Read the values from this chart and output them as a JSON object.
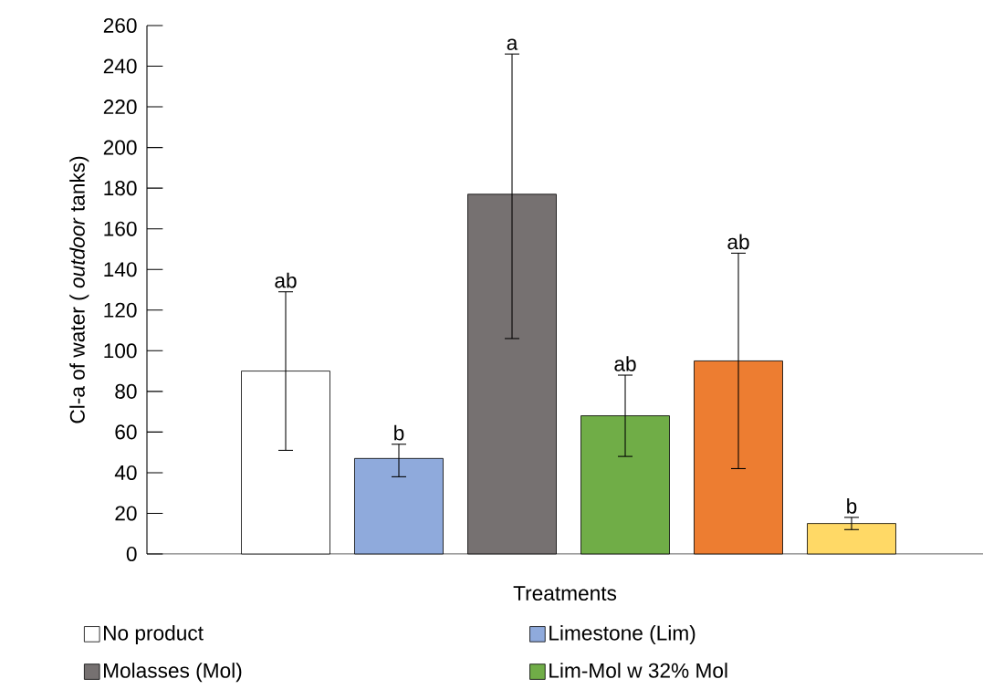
{
  "chart_data": {
    "type": "bar",
    "xlabel": "Treatments",
    "ylabel": "Cl-a of water ( *outdoor* tanks)",
    "categories": [
      null,
      null,
      null,
      null,
      null,
      null
    ],
    "series": [
      {
        "name": "No product",
        "color": "#ffffff",
        "values": [
          90,
          null,
          null,
          null,
          null,
          null
        ],
        "errors": [
          [
            51,
            129
          ],
          null,
          null,
          null,
          null,
          null
        ]
      },
      {
        "name": "Limestone (Lim)",
        "color": "#8faadc",
        "values": [
          null,
          47,
          null,
          null,
          null,
          null
        ],
        "errors": [
          null,
          [
            38,
            54
          ],
          null,
          null,
          null,
          null
        ]
      },
      {
        "name": "Molasses (Mol)",
        "color": "#767171",
        "values": [
          null,
          null,
          177,
          null,
          null,
          null
        ],
        "errors": [
          null,
          null,
          [
            106,
            246
          ],
          null,
          null,
          null
        ]
      },
      {
        "name": "Lim-Mol w 32% Mol",
        "color": "#70ad47",
        "values": [
          null,
          null,
          null,
          68,
          null,
          null
        ],
        "errors": [
          null,
          null,
          null,
          [
            48,
            88
          ],
          null,
          null
        ]
      },
      {
        "color": "#ed7d31",
        "values": [
          null,
          null,
          null,
          null,
          95,
          null
        ],
        "errors": [
          null,
          null,
          null,
          null,
          [
            42,
            148
          ],
          null
        ]
      },
      {
        "color": "#ffd966",
        "values": [
          null,
          null,
          null,
          null,
          null,
          15
        ],
        "errors": [
          null,
          null,
          null,
          null,
          null,
          [
            12,
            18
          ]
        ]
      }
    ],
    "annotations": [
      {
        "text": "ab",
        "y": 129
      },
      {
        "text": "b",
        "y": 54
      },
      {
        "text": "a",
        "y": 246
      },
      {
        "text": "ab",
        "y": 88
      },
      {
        "text": "ab",
        "y": 148
      },
      {
        "text": "b",
        "y": 18
      }
    ],
    "ylim": [
      0,
      260
    ],
    "yticks": [
      0,
      20,
      40,
      60,
      80,
      100,
      120,
      140,
      160,
      180,
      200,
      220,
      240,
      260
    ],
    "grid": false,
    "legend": "bottom"
  }
}
